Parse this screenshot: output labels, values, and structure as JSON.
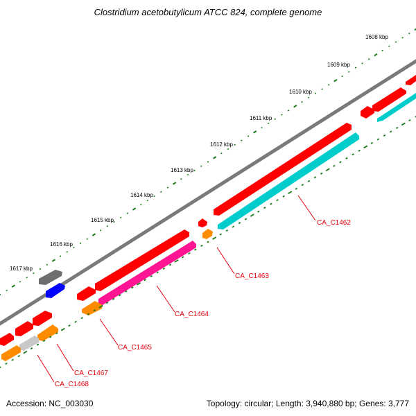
{
  "title": "Clostridium acetobutylicum ATCC 824, complete genome",
  "footer": {
    "accession": "Accession: NC_003030",
    "topology": "Topology: circular; Length: 3,940,880 bp; Genes: 3,777"
  },
  "kbp_labels": [
    "1608 kbp",
    "1609 kbp",
    "1610 kbp",
    "1611 kbp",
    "1612 kbp",
    "1613 kbp",
    "1614 kbp",
    "1615 kbp",
    "1616 kbp",
    "1617 kbp"
  ],
  "gene_labels": {
    "c1462": "CA_C1462",
    "c1463": "CA_C1463",
    "c1464": "CA_C1464",
    "c1465": "CA_C1465",
    "c1467": "CA_C1467",
    "c1468": "CA_C1468"
  },
  "colors": {
    "red": "#ff0000",
    "cyan": "#00cccc",
    "magenta": "#ff1493",
    "orange": "#ff8c00",
    "gray": "#808080",
    "lightgray": "#c8c8c8",
    "blue": "#0000ff",
    "backbone": "#7a7a7a",
    "ticks": "#1a7a1a",
    "label": "#e8000b"
  }
}
